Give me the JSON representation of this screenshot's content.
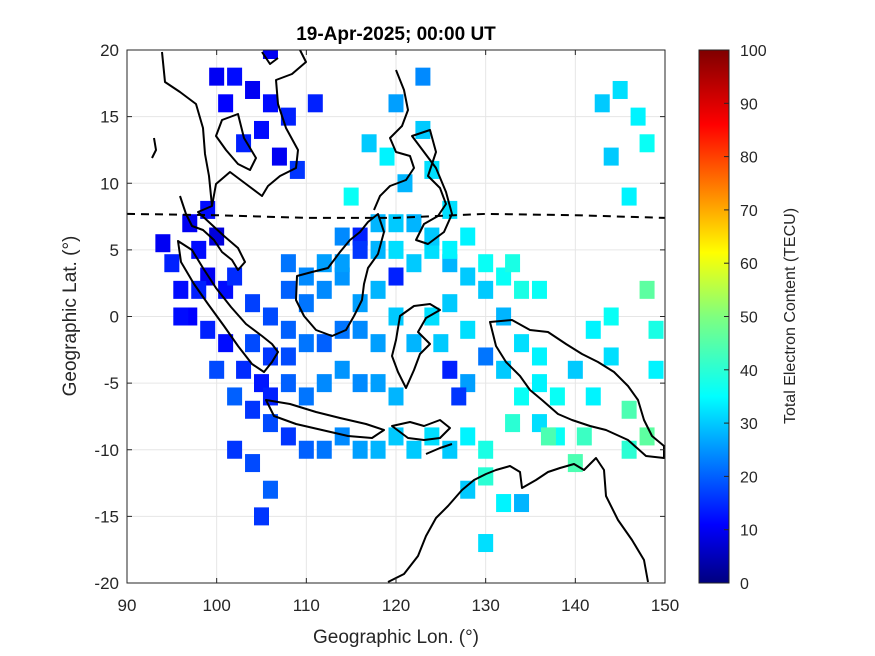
{
  "chart_data": {
    "type": "heatmap",
    "title": "19-Apr-2025; 00:00 UT",
    "xlabel": "Geographic Lon. (°)",
    "ylabel": "Geographic Lat. (°)",
    "xlim": [
      90,
      150
    ],
    "ylim": [
      -20,
      20
    ],
    "xticks": [
      "90",
      "100",
      "110",
      "120",
      "130",
      "140",
      "150"
    ],
    "yticks": [
      "20",
      "15",
      "10",
      "5",
      "0",
      "-5",
      "-10",
      "-15",
      "-20"
    ],
    "grid": true,
    "colormap": "jet",
    "colorbar": {
      "label": "Total Electron Content (TECU)",
      "range": [
        0,
        100
      ],
      "ticks": [
        "0",
        "10",
        "20",
        "30",
        "40",
        "50",
        "60",
        "70",
        "80",
        "90",
        "100"
      ]
    },
    "magnetic_equator": [
      [
        90,
        7.7
      ],
      [
        100,
        7.6
      ],
      [
        110,
        7.4
      ],
      [
        120,
        7.4
      ],
      [
        130,
        7.7
      ],
      [
        140,
        7.6
      ],
      [
        150,
        7.4
      ]
    ],
    "tec_pixels": [
      [
        94,
        5.5,
        10
      ],
      [
        95,
        4,
        14
      ],
      [
        96,
        2,
        12
      ],
      [
        97,
        7,
        10
      ],
      [
        98,
        5,
        12
      ],
      [
        99,
        3,
        10
      ],
      [
        100,
        6,
        8
      ],
      [
        101,
        2,
        12
      ],
      [
        97,
        0,
        11
      ],
      [
        99,
        -1,
        14
      ],
      [
        101,
        -2,
        12
      ],
      [
        103,
        -4,
        15
      ],
      [
        105,
        -5,
        13
      ],
      [
        102,
        3,
        15
      ],
      [
        104,
        1,
        17
      ],
      [
        104,
        -2,
        18
      ],
      [
        106,
        -3,
        16
      ],
      [
        108,
        -5,
        20
      ],
      [
        110,
        -6,
        22
      ],
      [
        112,
        -5,
        24
      ],
      [
        114,
        -4,
        25
      ],
      [
        116,
        -5,
        24
      ],
      [
        118,
        -5,
        26
      ],
      [
        120,
        -6,
        28
      ],
      [
        106,
        -8,
        18
      ],
      [
        108,
        -9,
        16
      ],
      [
        110,
        -10,
        20
      ],
      [
        112,
        -10,
        22
      ],
      [
        114,
        -9,
        24
      ],
      [
        116,
        -10,
        26
      ],
      [
        118,
        -10,
        28
      ],
      [
        120,
        -9,
        30
      ],
      [
        122,
        -10,
        30
      ],
      [
        124,
        -9,
        32
      ],
      [
        126,
        -10,
        30
      ],
      [
        128,
        -9,
        34
      ],
      [
        130,
        -10,
        38
      ],
      [
        106,
        0,
        18
      ],
      [
        108,
        -1,
        20
      ],
      [
        110,
        1,
        22
      ],
      [
        112,
        2,
        24
      ],
      [
        114,
        3,
        25
      ],
      [
        116,
        1,
        26
      ],
      [
        118,
        2,
        28
      ],
      [
        120,
        3,
        30
      ],
      [
        118,
        5,
        28
      ],
      [
        116,
        6,
        14
      ],
      [
        114,
        4,
        26
      ],
      [
        120,
        5,
        32
      ],
      [
        122,
        4,
        30
      ],
      [
        124,
        5,
        32
      ],
      [
        126,
        4,
        28
      ],
      [
        128,
        3,
        30
      ],
      [
        130,
        2,
        30
      ],
      [
        132,
        0,
        28
      ],
      [
        134,
        -2,
        32
      ],
      [
        136,
        -3,
        34
      ],
      [
        126,
        1,
        30
      ],
      [
        128,
        -1,
        32
      ],
      [
        130,
        -3,
        22
      ],
      [
        126,
        -4,
        14
      ],
      [
        128,
        -5,
        26
      ],
      [
        132,
        -4,
        30
      ],
      [
        136,
        -5,
        34
      ],
      [
        138,
        -6,
        36
      ],
      [
        140,
        -4,
        30
      ],
      [
        142,
        -6,
        34
      ],
      [
        144,
        -3,
        32
      ],
      [
        146,
        -7,
        44
      ],
      [
        148,
        -9,
        46
      ],
      [
        149,
        -4,
        34
      ],
      [
        136,
        -8,
        32
      ],
      [
        138,
        -9,
        36
      ],
      [
        140,
        -11,
        44
      ],
      [
        130,
        -12,
        38
      ],
      [
        128,
        -13,
        30
      ],
      [
        132,
        -14,
        34
      ],
      [
        134,
        -14,
        28
      ],
      [
        130,
        -17,
        32
      ],
      [
        100,
        18,
        10
      ],
      [
        102,
        18,
        12
      ],
      [
        104,
        17,
        10
      ],
      [
        106,
        16,
        12
      ],
      [
        108,
        15,
        14
      ],
      [
        101,
        16,
        11
      ],
      [
        103,
        13,
        14
      ],
      [
        105,
        14,
        12
      ],
      [
        107,
        12,
        10
      ],
      [
        106,
        20,
        10
      ],
      [
        109,
        11,
        16
      ],
      [
        111,
        16,
        14
      ],
      [
        115,
        9,
        36
      ],
      [
        117,
        13,
        30
      ],
      [
        119,
        12,
        34
      ],
      [
        120,
        16,
        26
      ],
      [
        121,
        10,
        28
      ],
      [
        123,
        18,
        24
      ],
      [
        123,
        14,
        30
      ],
      [
        124,
        11,
        32
      ],
      [
        126,
        8,
        32
      ],
      [
        128,
        6,
        34
      ],
      [
        122,
        7,
        28
      ],
      [
        124,
        6,
        30
      ],
      [
        126,
        5,
        34
      ],
      [
        130,
        4,
        36
      ],
      [
        132,
        3,
        36
      ],
      [
        134,
        2,
        38
      ],
      [
        136,
        2,
        36
      ],
      [
        133,
        4,
        38
      ],
      [
        134,
        -6,
        36
      ],
      [
        120,
        3,
        14
      ],
      [
        125,
        -2,
        30
      ],
      [
        127,
        -6,
        16
      ],
      [
        143,
        16,
        30
      ],
      [
        145,
        17,
        32
      ],
      [
        147,
        15,
        34
      ],
      [
        148,
        13,
        36
      ],
      [
        144,
        12,
        30
      ],
      [
        146,
        9,
        34
      ],
      [
        148,
        2,
        46
      ],
      [
        149,
        -1,
        38
      ],
      [
        144,
        0,
        36
      ],
      [
        142,
        -1,
        34
      ],
      [
        130,
        -12,
        40
      ],
      [
        133,
        -8,
        40
      ],
      [
        137,
        -9,
        44
      ],
      [
        141,
        -9,
        42
      ],
      [
        146,
        -10,
        40
      ],
      [
        104,
        -11,
        18
      ],
      [
        106,
        -13,
        20
      ],
      [
        105,
        -15,
        16
      ],
      [
        102,
        -10,
        16
      ],
      [
        108,
        2,
        20
      ],
      [
        108,
        4,
        22
      ],
      [
        110,
        3,
        24
      ],
      [
        112,
        4,
        26
      ],
      [
        114,
        6,
        24
      ],
      [
        116,
        5,
        16
      ],
      [
        118,
        7,
        28
      ],
      [
        120,
        7,
        30
      ],
      [
        120,
        0,
        30
      ],
      [
        122,
        -2,
        28
      ],
      [
        124,
        0,
        32
      ],
      [
        118,
        -2,
        26
      ],
      [
        116,
        -1,
        24
      ],
      [
        114,
        -1,
        22
      ],
      [
        112,
        -2,
        20
      ],
      [
        110,
        -2,
        22
      ],
      [
        108,
        -3,
        18
      ],
      [
        106,
        -6,
        14
      ],
      [
        100,
        -4,
        18
      ],
      [
        102,
        -6,
        20
      ],
      [
        104,
        -7,
        16
      ],
      [
        98,
        2,
        14
      ],
      [
        96,
        0,
        12
      ],
      [
        99,
        8,
        12
      ]
    ]
  }
}
